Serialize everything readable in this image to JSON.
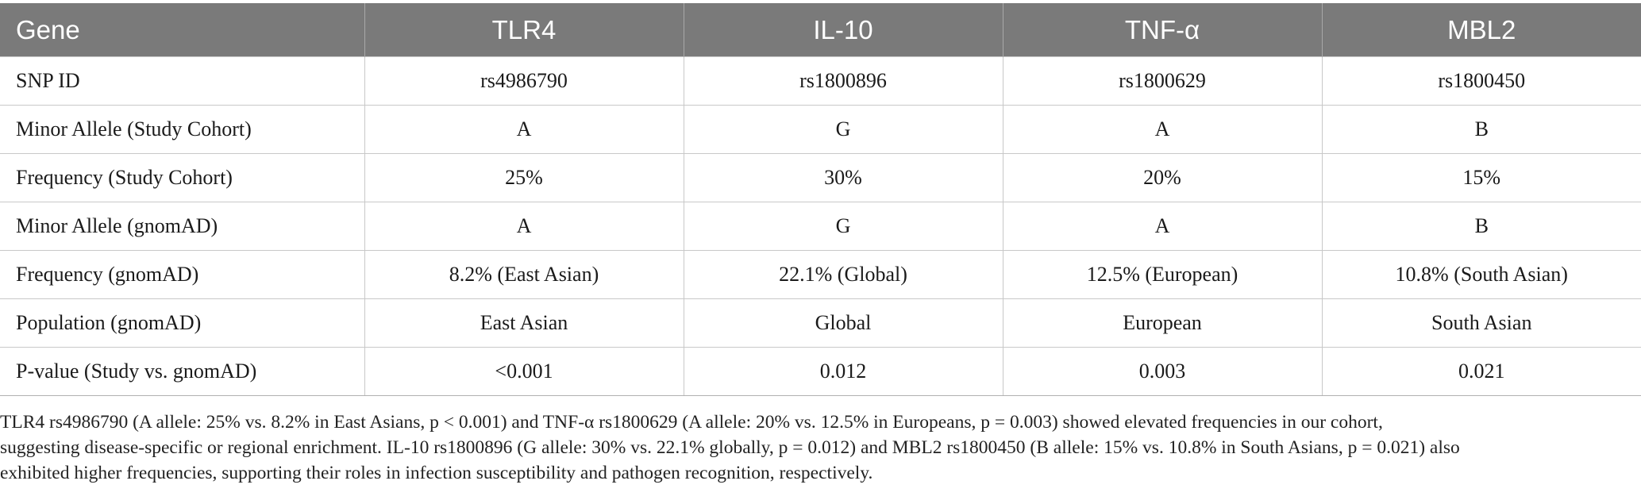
{
  "table": {
    "headers": [
      "Gene",
      "TLR4",
      "IL-10",
      "TNF-α",
      "MBL2"
    ],
    "rows": [
      [
        "SNP ID",
        "rs4986790",
        "rs1800896",
        "rs1800629",
        "rs1800450"
      ],
      [
        "Minor Allele (Study Cohort)",
        "A",
        "G",
        "A",
        "B"
      ],
      [
        "Frequency (Study Cohort)",
        "25%",
        "30%",
        "20%",
        "15%"
      ],
      [
        "Minor Allele (gnomAD)",
        "A",
        "G",
        "A",
        "B"
      ],
      [
        "Frequency (gnomAD)",
        "8.2% (East Asian)",
        "22.1% (Global)",
        "12.5% (European)",
        "10.8% (South Asian)"
      ],
      [
        "Population (gnomAD)",
        "East Asian",
        "Global",
        "European",
        "South Asian"
      ],
      [
        "P-value (Study vs. gnomAD)",
        "<0.001",
        "0.012",
        "0.003",
        "0.021"
      ]
    ]
  },
  "footnote": {
    "lines": [
      "TLR4 rs4986790 (A allele: 25% vs. 8.2% in East Asians, p < 0.001) and TNF-α rs1800629 (A allele: 20% vs. 12.5% in Europeans, p = 0.003) showed elevated frequencies in our cohort,",
      "suggesting disease-specific or regional enrichment. IL-10 rs1800896 (G allele: 30% vs. 22.1% globally, p = 0.012) and MBL2 rs1800450 (B allele: 15% vs. 10.8% in South Asians, p = 0.021) also",
      "exhibited higher frequencies, supporting their roles in infection susceptibility and pathogen recognition, respectively."
    ]
  }
}
